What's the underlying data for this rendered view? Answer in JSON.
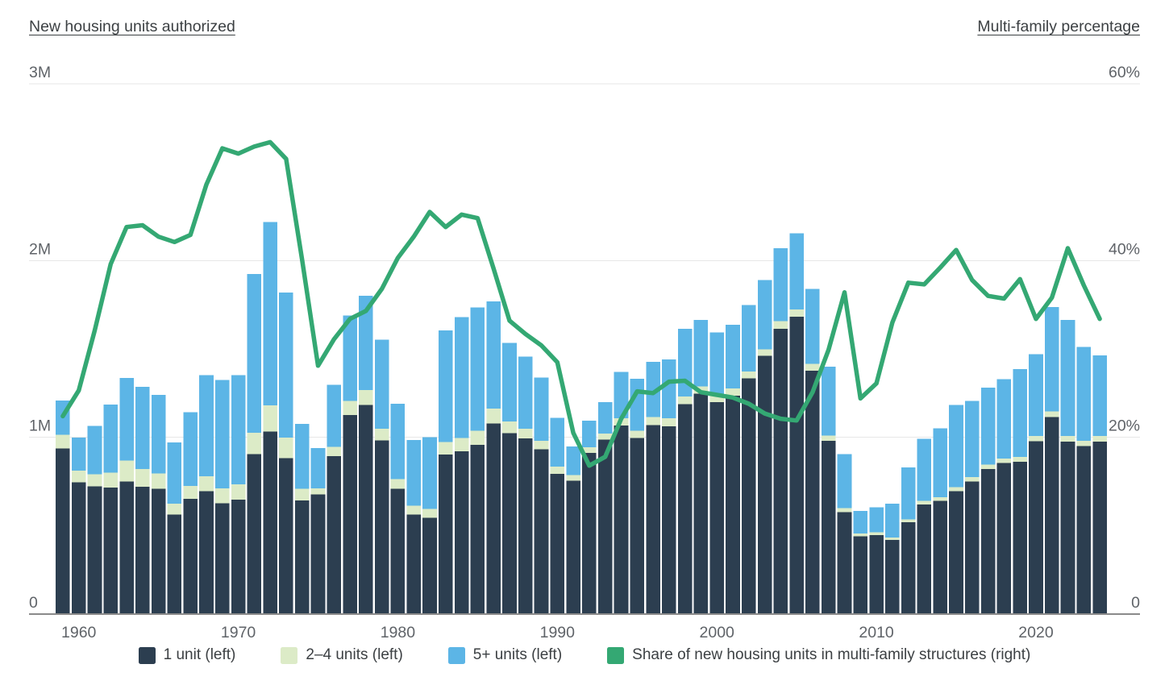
{
  "header": {
    "left_title": "New housing units authorized",
    "right_title": "Multi-family percentage"
  },
  "chart_data": {
    "type": "combo-stacked-bar-line",
    "bar_values_unit": "thousands of housing units",
    "grid": "horizontal",
    "legend_position": "bottom",
    "left_axis": {
      "title": "New housing units authorized",
      "tick_labels": [
        "3M",
        "2M",
        "1M",
        "0"
      ],
      "tick_values_millions": [
        3,
        2,
        1,
        0
      ],
      "range_millions": [
        0,
        3
      ]
    },
    "right_axis": {
      "title": "Multi-family percentage",
      "tick_labels": [
        "60%",
        "40%",
        "20%",
        "0"
      ],
      "tick_values_percent": [
        60,
        40,
        20,
        0
      ],
      "range_percent": [
        0,
        60
      ]
    },
    "x_tick_labels": [
      "1960",
      "1970",
      "1980",
      "1990",
      "2000",
      "2010",
      "2020"
    ],
    "series": [
      {
        "name": "1 unit (left)",
        "type": "bar",
        "color": "#2c3e50"
      },
      {
        "name": "2–4 units (left)",
        "type": "bar",
        "color": "#dcebc7"
      },
      {
        "name": "5+ units (left)",
        "type": "bar",
        "color": "#5cb5e6"
      },
      {
        "name": "Share of new housing units in multi-family structures (right)",
        "type": "line",
        "color": "#34a873"
      }
    ],
    "years": [
      1959,
      1960,
      1961,
      1962,
      1963,
      1964,
      1965,
      1966,
      1967,
      1968,
      1969,
      1970,
      1971,
      1972,
      1973,
      1974,
      1975,
      1976,
      1977,
      1978,
      1979,
      1980,
      1981,
      1982,
      1983,
      1984,
      1985,
      1986,
      1987,
      1988,
      1989,
      1990,
      1991,
      1992,
      1993,
      1994,
      1995,
      1996,
      1997,
      1998,
      1999,
      2000,
      2001,
      2002,
      2003,
      2004,
      2005,
      2006,
      2007,
      2008,
      2009,
      2010,
      2011,
      2012,
      2013,
      2014,
      2015,
      2016,
      2017,
      2018,
      2019,
      2020,
      2021,
      2022,
      2023,
      2024
    ],
    "one_unit": [
      938,
      746,
      723,
      716,
      750,
      720,
      710,
      563,
      651,
      695,
      626,
      647,
      906,
      1033,
      882,
      644,
      676,
      894,
      1126,
      1183,
      982,
      710,
      564,
      546,
      902,
      922,
      957,
      1078,
      1024,
      994,
      932,
      794,
      754,
      911,
      987,
      1068,
      997,
      1070,
      1062,
      1188,
      1247,
      1198,
      1236,
      1333,
      1461,
      1613,
      1682,
      1378,
      980,
      576,
      441,
      447,
      419,
      519,
      621,
      640,
      696,
      751,
      820,
      855,
      862,
      979,
      1115,
      976,
      950,
      975
    ],
    "two_four_units": [
      77,
      65,
      68,
      84,
      119,
      101,
      85,
      61,
      73,
      84,
      85,
      88,
      121,
      149,
      117,
      65,
      36,
      53,
      81,
      84,
      66,
      54,
      49,
      48,
      71,
      74,
      80,
      84,
      65,
      54,
      49,
      41,
      33,
      33,
      35,
      40,
      41,
      45,
      45,
      43,
      42,
      45,
      40,
      39,
      37,
      44,
      42,
      38,
      31,
      23,
      15,
      15,
      15,
      17,
      19,
      21,
      22,
      24,
      25,
      25,
      26,
      29,
      32,
      32,
      30,
      33
    ],
    "five_plus_units": [
      193,
      187,
      274,
      386,
      466,
      465,
      445,
      348,
      417,
      574,
      613,
      617,
      898,
      1037,
      820,
      366,
      228,
      350,
      483,
      534,
      505,
      426,
      372,
      407,
      633,
      685,
      697,
      607,
      445,
      408,
      358,
      276,
      162,
      151,
      178,
      263,
      294,
      311,
      334,
      382,
      375,
      350,
      361,
      377,
      391,
      413,
      431,
      423,
      388,
      307,
      127,
      143,
      191,
      294,
      351,
      391,
      465,
      432,
      437,
      449,
      499,
      463,
      590,
      657,
      532,
      455
    ],
    "multi_family_share_pct": [
      22.4,
      25.3,
      32.1,
      39.6,
      43.8,
      44.0,
      42.7,
      42.1,
      42.9,
      48.6,
      52.7,
      52.1,
      52.9,
      53.4,
      51.5,
      40.1,
      28.1,
      31.1,
      33.4,
      34.3,
      36.8,
      40.3,
      42.7,
      45.5,
      43.8,
      45.2,
      44.8,
      39.1,
      33.2,
      31.7,
      30.4,
      28.5,
      20.5,
      16.8,
      17.8,
      22.1,
      25.2,
      25.0,
      26.3,
      26.4,
      25.1,
      24.8,
      24.5,
      23.8,
      22.7,
      22.1,
      21.9,
      25.1,
      29.9,
      36.4,
      24.4,
      26.1,
      33.0,
      37.5,
      37.3,
      39.2,
      41.2,
      37.8,
      36.0,
      35.7,
      37.9,
      33.4,
      35.8,
      41.4,
      37.2,
      33.4
    ]
  },
  "colors": {
    "axis_label": "#5f6368",
    "title_text": "#3c4043",
    "gridline": "#e7e7e7",
    "baseline": "#8a8a8a"
  }
}
